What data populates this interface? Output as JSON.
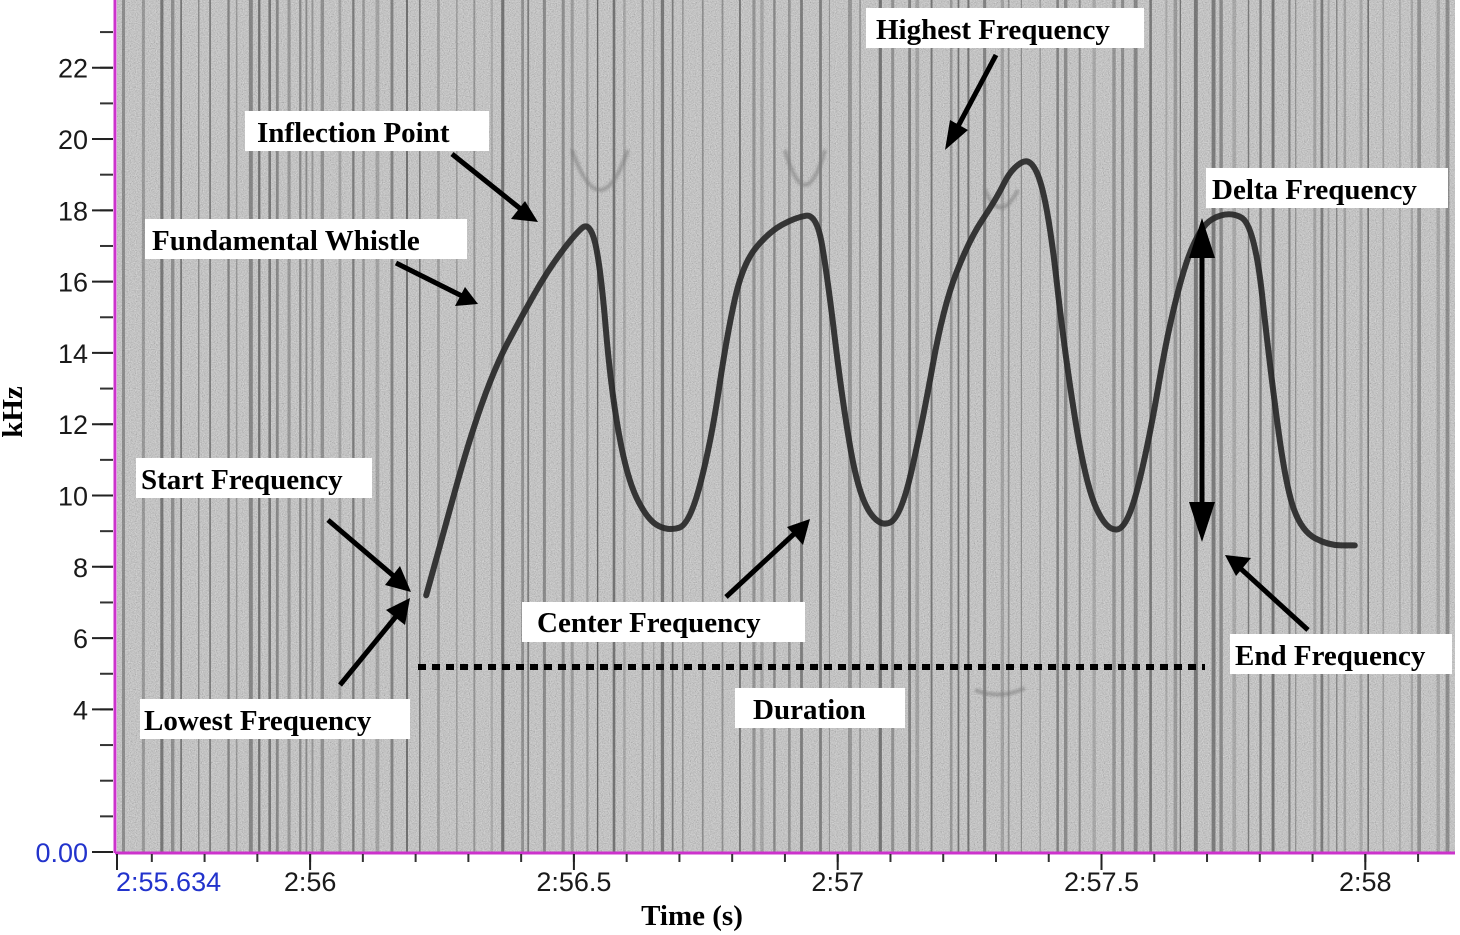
{
  "chart_data": {
    "type": "spectrogram",
    "xlabel": "Time (s)",
    "ylabel": "kHz",
    "x_ticks": [
      {
        "label": "2:55.634",
        "t": 175.634,
        "highlight": true
      },
      {
        "label": "2:56",
        "t": 176.0
      },
      {
        "label": "2:56.5",
        "t": 176.5
      },
      {
        "label": "2:57",
        "t": 177.0
      },
      {
        "label": "2:57.5",
        "t": 177.5
      },
      {
        "label": "2:58",
        "t": 178.0
      }
    ],
    "y_ticks": [
      {
        "label": "0.00",
        "v": 0,
        "highlight": true
      },
      {
        "label": "4",
        "v": 4
      },
      {
        "label": "6",
        "v": 6
      },
      {
        "label": "8",
        "v": 8
      },
      {
        "label": "10",
        "v": 10
      },
      {
        "label": "12",
        "v": 12
      },
      {
        "label": "14",
        "v": 14
      },
      {
        "label": "16",
        "v": 16
      },
      {
        "label": "18",
        "v": 18
      },
      {
        "label": "20",
        "v": 20
      },
      {
        "label": "22",
        "v": 22
      }
    ],
    "ylim": [
      0,
      23.9
    ],
    "xlim": [
      175.634,
      178.17
    ],
    "whistle_contour": [
      [
        176.22,
        7.2
      ],
      [
        176.25,
        8.8
      ],
      [
        176.3,
        11.5
      ],
      [
        176.35,
        13.6
      ],
      [
        176.4,
        15.0
      ],
      [
        176.45,
        16.3
      ],
      [
        176.5,
        17.3
      ],
      [
        176.53,
        17.7
      ],
      [
        176.55,
        16.5
      ],
      [
        176.57,
        13.0
      ],
      [
        176.6,
        10.5
      ],
      [
        176.64,
        9.3
      ],
      [
        176.68,
        9.0
      ],
      [
        176.72,
        9.2
      ],
      [
        176.76,
        11.5
      ],
      [
        176.79,
        14.5
      ],
      [
        176.82,
        16.5
      ],
      [
        176.87,
        17.4
      ],
      [
        176.92,
        17.8
      ],
      [
        176.96,
        17.9
      ],
      [
        176.98,
        16.2
      ],
      [
        177.01,
        12.5
      ],
      [
        177.04,
        10.0
      ],
      [
        177.08,
        9.1
      ],
      [
        177.12,
        9.4
      ],
      [
        177.16,
        12.0
      ],
      [
        177.2,
        15.3
      ],
      [
        177.25,
        17.2
      ],
      [
        177.3,
        18.3
      ],
      [
        177.33,
        19.2
      ],
      [
        177.37,
        19.5
      ],
      [
        177.4,
        18.0
      ],
      [
        177.43,
        14.0
      ],
      [
        177.47,
        10.3
      ],
      [
        177.51,
        9.0
      ],
      [
        177.55,
        9.1
      ],
      [
        177.59,
        11.5
      ],
      [
        177.63,
        15.0
      ],
      [
        177.68,
        17.5
      ],
      [
        177.74,
        18.0
      ],
      [
        177.79,
        17.6
      ],
      [
        177.82,
        13.5
      ],
      [
        177.85,
        10.2
      ],
      [
        177.88,
        9.0
      ],
      [
        177.93,
        8.6
      ],
      [
        177.98,
        8.6
      ]
    ]
  },
  "annotations": {
    "highest_frequency": "Highest Frequency",
    "inflection_point": "Inflection Point",
    "fundamental_whistle": "Fundamental Whistle",
    "delta_frequency": "Delta Frequency",
    "start_frequency": "Start Frequency",
    "center_frequency": "Center Frequency",
    "end_frequency": "End Frequency",
    "lowest_frequency": "Lowest Frequency",
    "duration": "Duration"
  },
  "colors": {
    "spectrogram_bg": "#a8a8a8",
    "axis_line": "#cc33cc",
    "contour": "#262626",
    "highlight_tick": "#2233cc"
  }
}
